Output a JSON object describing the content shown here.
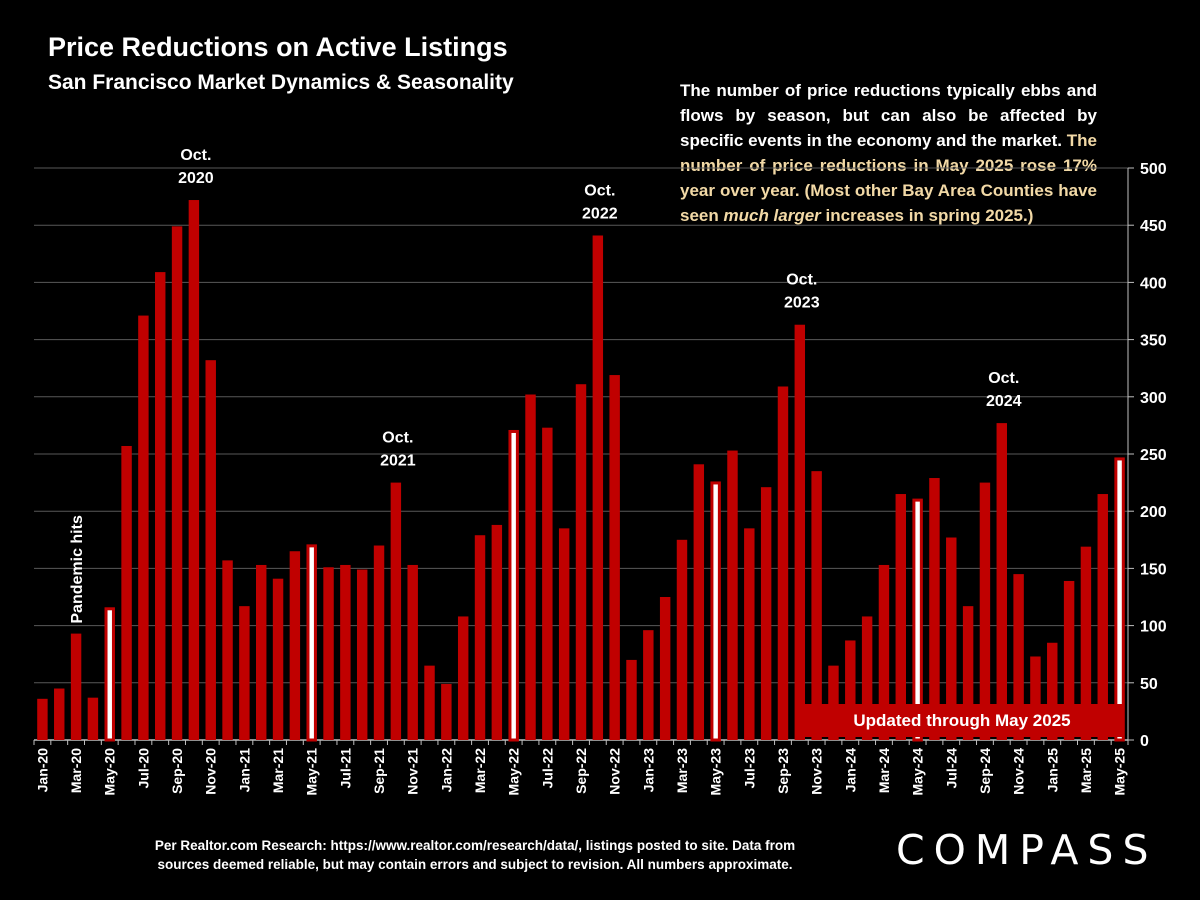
{
  "header": {
    "title": "Price Reductions on Active Listings",
    "subtitle": "San Francisco Market Dynamics & Seasonality"
  },
  "note": {
    "part1": "The number of price reductions typically ebbs and flows by season, but can also be affected by specific events in the economy and the market. ",
    "part2": "The number of price reductions in May 2025 rose 17% year over year. (Most other Bay Area Counties have seen ",
    "part3": "much larger",
    "part4": " increases in spring 2025.)"
  },
  "updated_label": "Updated through May 2025",
  "footer": {
    "line1": "Per Realtor.com Research:  https://www.realtor.com/research/data/, listings posted to site. Data from",
    "line2": "sources deemed reliable, but may contain errors and subject to revision. All numbers approximate."
  },
  "logo": "COMPASS",
  "colors": {
    "bar": "#c00000",
    "highlight_fill": "#ffffff",
    "highlight_stroke": "#c00000",
    "grid": "#595959",
    "background": "#000000",
    "note_highlight": "#f2d9a6"
  },
  "chart_data": {
    "type": "bar",
    "yaxis_side": "right",
    "ylim": [
      0,
      500
    ],
    "yticks": [
      0,
      50,
      100,
      150,
      200,
      250,
      300,
      350,
      400,
      450,
      500
    ],
    "grid": true,
    "categories": [
      "Jan-20",
      "Feb-20",
      "Mar-20",
      "Apr-20",
      "May-20",
      "Jun-20",
      "Jul-20",
      "Aug-20",
      "Sep-20",
      "Oct-20",
      "Nov-20",
      "Dec-20",
      "Jan-21",
      "Feb-21",
      "Mar-21",
      "Apr-21",
      "May-21",
      "Jun-21",
      "Jul-21",
      "Aug-21",
      "Sep-21",
      "Oct-21",
      "Nov-21",
      "Dec-21",
      "Jan-22",
      "Feb-22",
      "Mar-22",
      "Apr-22",
      "May-22",
      "Jun-22",
      "Jul-22",
      "Aug-22",
      "Sep-22",
      "Oct-22",
      "Nov-22",
      "Dec-22",
      "Jan-23",
      "Feb-23",
      "Mar-23",
      "Apr-23",
      "May-23",
      "Jun-23",
      "Jul-23",
      "Aug-23",
      "Sep-23",
      "Oct-23",
      "Nov-23",
      "Dec-23",
      "Jan-24",
      "Feb-24",
      "Mar-24",
      "Apr-24",
      "May-24",
      "Jun-24",
      "Jul-24",
      "Aug-24",
      "Sep-24",
      "Oct-24",
      "Nov-24",
      "Dec-24",
      "Jan-25",
      "Feb-25",
      "Mar-25",
      "Apr-25",
      "May-25"
    ],
    "values": [
      36,
      45,
      93,
      37,
      116,
      257,
      371,
      409,
      449,
      472,
      332,
      157,
      117,
      153,
      141,
      165,
      171,
      151,
      153,
      149,
      170,
      225,
      153,
      65,
      49,
      108,
      179,
      188,
      271,
      302,
      273,
      185,
      311,
      441,
      319,
      70,
      96,
      125,
      175,
      241,
      226,
      253,
      185,
      221,
      309,
      363,
      235,
      65,
      87,
      108,
      153,
      215,
      211,
      229,
      177,
      117,
      225,
      277,
      145,
      73,
      85,
      139,
      169,
      215,
      247
    ],
    "highlighted": [
      "May-20",
      "May-21",
      "May-22",
      "May-23",
      "May-24",
      "May-25"
    ],
    "xtick_labels": [
      "Jan-20",
      "Mar-20",
      "May-20",
      "Jul-20",
      "Sep-20",
      "Nov-20",
      "Jan-21",
      "Mar-21",
      "May-21",
      "Jul-21",
      "Sep-21",
      "Nov-21",
      "Jan-22",
      "Mar-22",
      "May-22",
      "Jul-22",
      "Sep-22",
      "Nov-22",
      "Jan-23",
      "Mar-23",
      "May-23",
      "Jul-23",
      "Sep-23",
      "Nov-23",
      "Jan-24",
      "Mar-24",
      "May-24",
      "Jul-24",
      "Sep-24",
      "Nov-24",
      "Jan-25",
      "Mar-25",
      "May-25"
    ],
    "annotations": [
      {
        "category": "Oct-20",
        "lines": [
          "Oct.",
          "2020"
        ]
      },
      {
        "category": "Oct-21",
        "lines": [
          "Oct.",
          "2021"
        ]
      },
      {
        "category": "Oct-22",
        "lines": [
          "Oct.",
          "2022"
        ]
      },
      {
        "category": "Oct-23",
        "lines": [
          "Oct.",
          "2023"
        ]
      },
      {
        "category": "Oct-24",
        "lines": [
          "Oct.",
          "2024"
        ]
      }
    ],
    "vertical_annotation": {
      "category": "Mar-20",
      "text": "Pandemic hits"
    }
  }
}
